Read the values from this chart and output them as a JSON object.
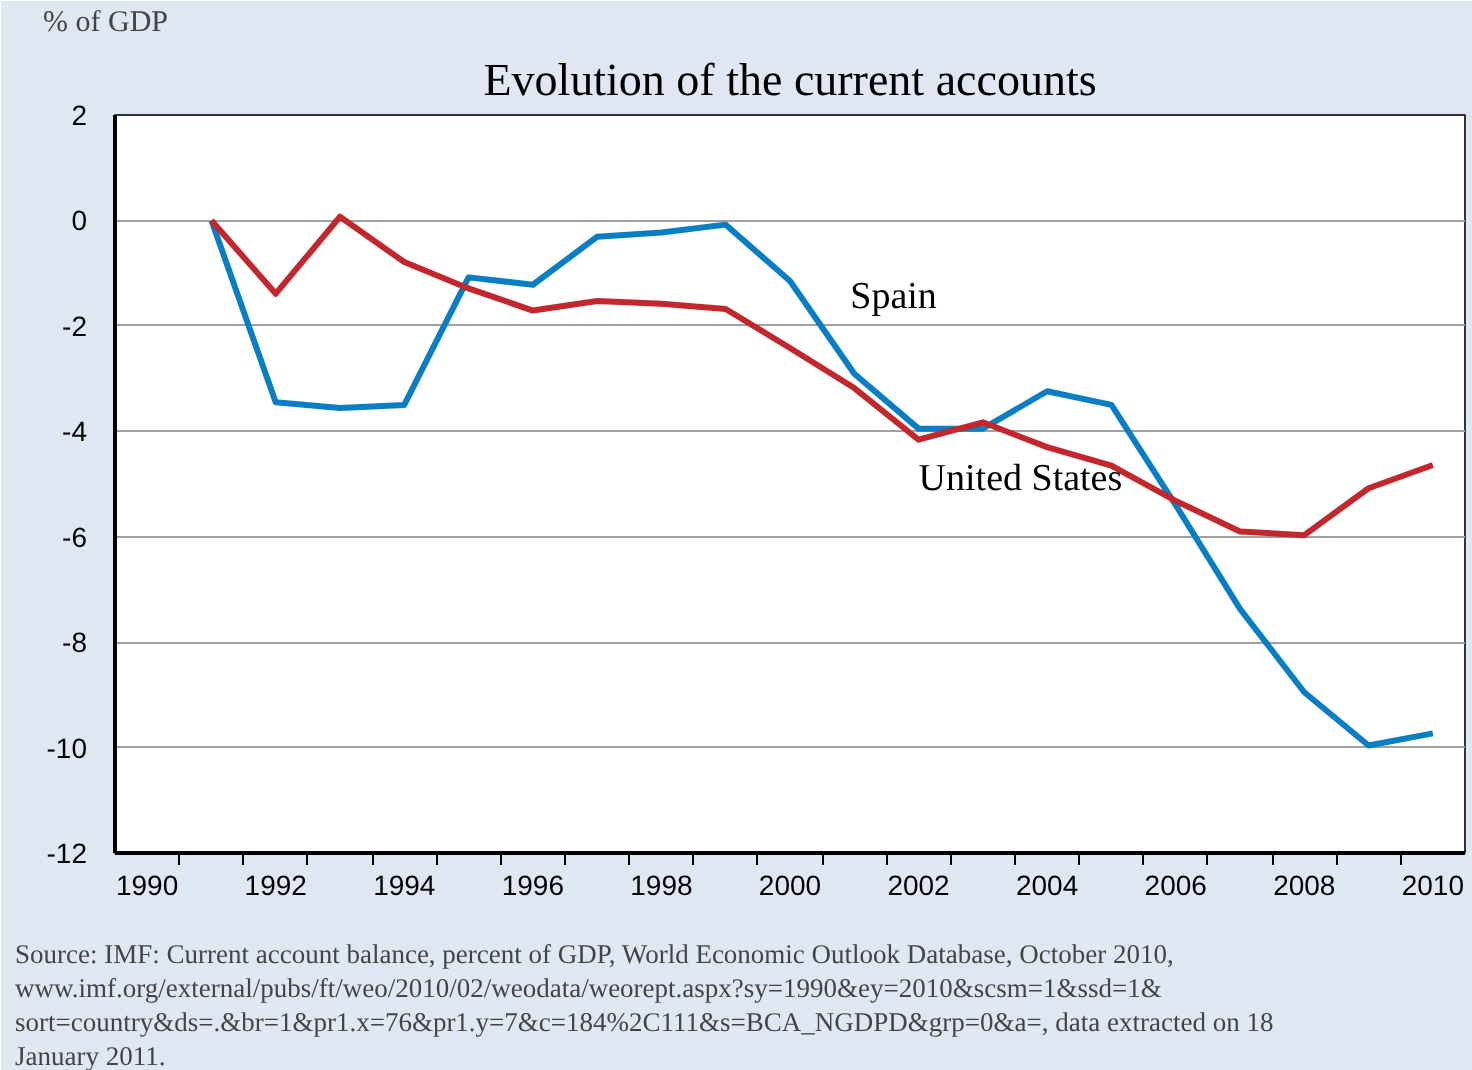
{
  "chart_data": {
    "type": "line",
    "title": "Evolution of the current accounts",
    "ylabel": "% of GDP",
    "x": [
      1991,
      1992,
      1993,
      1994,
      1995,
      1996,
      1997,
      1998,
      1999,
      2000,
      2001,
      2002,
      2003,
      2004,
      2005,
      2006,
      2007,
      2008,
      2009,
      2010
    ],
    "series": [
      {
        "name": "Spain",
        "color": "#0a7ec2",
        "values": [
          0,
          -3.45,
          -3.56,
          -3.5,
          -1.08,
          -1.22,
          -0.31,
          -0.23,
          -0.08,
          -1.15,
          -2.91,
          -3.95,
          -3.95,
          -3.24,
          -3.5,
          -5.4,
          -7.37,
          -8.95,
          -9.96,
          -9.73
        ]
      },
      {
        "name": "United States",
        "color": "#c1272d",
        "values": [
          0,
          -1.39,
          0.07,
          -0.79,
          -1.29,
          -1.71,
          -1.53,
          -1.58,
          -1.68,
          -2.42,
          -3.18,
          -4.16,
          -3.83,
          -4.3,
          -4.65,
          -5.32,
          -5.9,
          -5.97,
          -5.08,
          -4.64
        ]
      }
    ],
    "xlim": [
      1989.5,
      2010.5
    ],
    "xticks": [
      1990,
      1992,
      1994,
      1996,
      1998,
      2000,
      2002,
      2004,
      2006,
      2008,
      2010,
      {
        "value": 1990.5,
        "label": null
      },
      {
        "value": 1991.5,
        "label": null
      },
      {
        "value": 1992.5,
        "label": null
      },
      {
        "value": 1993.5,
        "label": null
      },
      {
        "value": 1994.5,
        "label": null
      },
      {
        "value": 1995.5,
        "label": null
      },
      {
        "value": 1996.5,
        "label": null
      },
      {
        "value": 1997.5,
        "label": null
      },
      {
        "value": 1998.5,
        "label": null
      },
      {
        "value": 1999.5,
        "label": null
      },
      {
        "value": 2000.5,
        "label": null
      },
      {
        "value": 2001.5,
        "label": null
      },
      {
        "value": 2002.5,
        "label": null
      },
      {
        "value": 2003.5,
        "label": null
      },
      {
        "value": 2004.5,
        "label": null
      },
      {
        "value": 2005.5,
        "label": null
      },
      {
        "value": 2006.5,
        "label": null
      },
      {
        "value": 2007.5,
        "label": null
      },
      {
        "value": 2008.5,
        "label": null
      },
      {
        "value": 2009.5,
        "label": null
      }
    ],
    "ylim": [
      -12,
      2
    ],
    "yticks": [
      -12,
      -10,
      -8,
      -6,
      -4,
      -2,
      0,
      2
    ],
    "grid": "y",
    "marker": "none",
    "line_style": "solid",
    "annotations": [
      "Source: IMF: Current account balance, percent of GDP, World Economic Outlook Database, October 2010, www.imf.org/external/pubs/ft/weo/2010/02/weodata/weorept.aspx?sy=1990&ey=2010&scsm=1&ssd=1& sort=country&ds=.&br=1&pr1.x=76&pr1.y=7&c=184%2C111&s=BCA_NGDPD&grp=0&a=, data extracted on 18 January 2011."
    ]
  }
}
